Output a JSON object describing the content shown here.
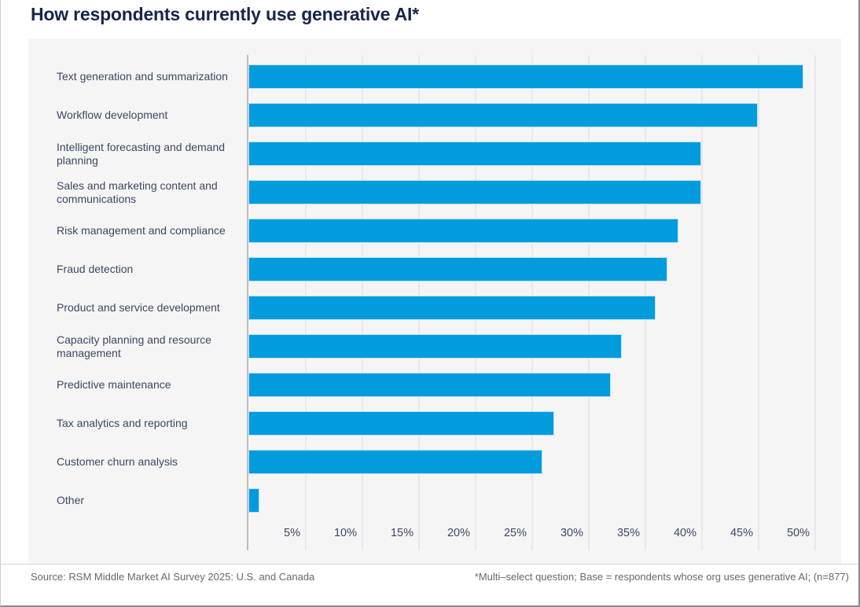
{
  "page": {
    "title": "How respondents currently use generative AI*",
    "footer": {
      "source": "Source: RSM Middle Market AI Survey 2025: U.S. and Canada",
      "note": "*Multi–select question; Base = respondents whose org uses generative AI; (n=877)"
    }
  },
  "chart_data": {
    "type": "bar",
    "orientation": "horizontal",
    "title": "How respondents currently use generative AI*",
    "categories": [
      "Text generation and summarization",
      "Workflow development",
      "Intelligent forecasting and demand planning",
      "Sales and marketing content and communications",
      "Risk management and compliance",
      "Fraud detection",
      "Product and service development",
      "Capacity planning and resource management",
      "Predictive maintenance",
      "Tax analytics and reporting",
      "Customer churn analysis",
      "Other"
    ],
    "values": [
      49,
      45,
      40,
      40,
      38,
      37,
      36,
      33,
      32,
      27,
      26,
      1
    ],
    "unit": "%",
    "x_ticks": [
      "5%",
      "10%",
      "15%",
      "20%",
      "25%",
      "30%",
      "35%",
      "40%",
      "45%",
      "50%"
    ],
    "xlim": [
      0,
      50
    ],
    "grid": true,
    "legend": "none",
    "colors": {
      "bar_fill": "#009CDE",
      "bar_border": "#bfe2f4",
      "title_text": "#16254B",
      "label_text": "#3C4862",
      "panel_background": "#f5f5f6"
    }
  }
}
